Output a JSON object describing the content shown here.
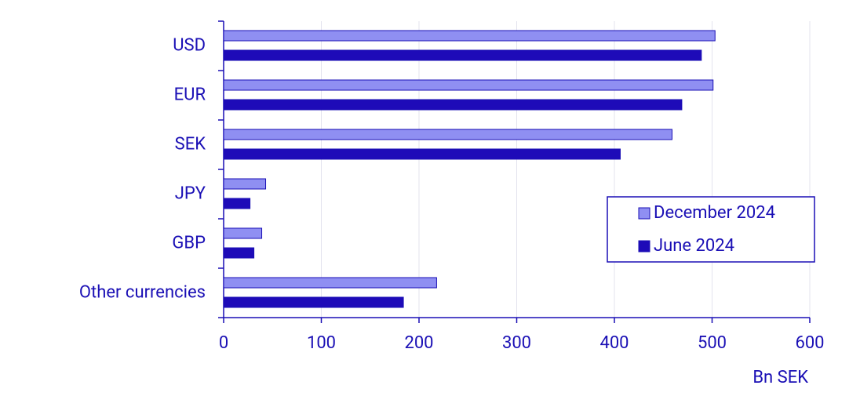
{
  "chart_data": {
    "type": "hbar",
    "categories": [
      "USD",
      "EUR",
      "SEK",
      "JPY",
      "GBP",
      "Other currencies"
    ],
    "series": [
      {
        "name": "December 2024",
        "color": "#8f8ff2",
        "values": [
          503,
          501,
          459,
          43,
          39,
          218
        ]
      },
      {
        "name": "June 2024",
        "color": "#1e0bb8",
        "values": [
          489,
          469,
          406,
          27,
          31,
          184
        ]
      }
    ],
    "xlim": [
      0,
      600
    ],
    "xticks": [
      0,
      100,
      200,
      300,
      400,
      500,
      600
    ],
    "x_label": "Bn SEK",
    "grid": true,
    "legend": "right"
  }
}
